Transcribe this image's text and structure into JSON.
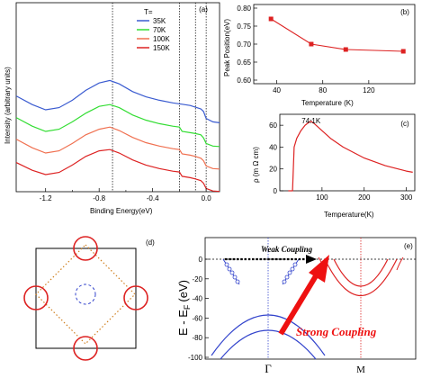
{
  "figure": {
    "panel_a": {
      "label": "(a)",
      "legend_title": "T=",
      "legend": [
        {
          "name": "35K",
          "color": "#3a5bd0"
        },
        {
          "name": "70K",
          "color": "#33dd33"
        },
        {
          "name": "100K",
          "color": "#f07050"
        },
        {
          "name": "150K",
          "color": "#dd2222"
        }
      ],
      "xlabel": "Binding Energy(eV)",
      "ylabel": "Intensity (arbitrary units)",
      "xticks": [
        "-1.2",
        "-0.8",
        "-0.4",
        "0.0"
      ]
    },
    "panel_b": {
      "label": "(b)",
      "xlabel": "Temperature (K)",
      "ylabel": "Peak Position(eV)",
      "xticks": [
        "40",
        "80",
        "120"
      ],
      "yticks": [
        "0.80",
        "0.75",
        "0.70",
        "0.65",
        "0.60"
      ]
    },
    "panel_c": {
      "label": "(c)",
      "annotation": "74.1K",
      "xlabel": "Temperature(K)",
      "ylabel": "ρ (m Ω cm)",
      "xticks": [
        "100",
        "200",
        "300"
      ],
      "yticks": [
        "0",
        "20",
        "40",
        "60"
      ]
    },
    "panel_d": {
      "label": "(d)"
    },
    "panel_e": {
      "label": "(e)",
      "weak_label": "Weak Coupling",
      "strong_label": "Strong Coupling",
      "ylabel": "E - E",
      "ylabel_sub": "F",
      "ylabel_unit": "(eV)",
      "yticks": [
        "0",
        "-20",
        "-40",
        "-60",
        "-80",
        "-100"
      ],
      "xticks": [
        "Γ",
        "M"
      ]
    }
  },
  "chart_data": [
    {
      "type": "line",
      "panel": "(a)",
      "xlabel": "Binding Energy(eV)",
      "ylabel": "Intensity (arbitrary units)",
      "xlim": [
        -1.42,
        0.1
      ],
      "series": [
        {
          "name": "35K",
          "color": "#3a5bd0",
          "offset": 3,
          "x": [
            -1.42,
            -1.3,
            -1.2,
            -1.1,
            -1.0,
            -0.9,
            -0.8,
            -0.72,
            -0.65,
            -0.55,
            -0.45,
            -0.35,
            -0.25,
            -0.18,
            -0.12,
            -0.08,
            -0.04,
            -0.02,
            0.0,
            0.05,
            0.1
          ],
          "y": [
            0.82,
            0.62,
            0.5,
            0.55,
            0.72,
            0.95,
            1.12,
            1.18,
            1.1,
            0.92,
            0.8,
            0.72,
            0.66,
            0.63,
            0.6,
            0.56,
            0.52,
            0.46,
            0.3,
            0.22,
            0.2
          ]
        },
        {
          "name": "70K",
          "color": "#33dd33",
          "offset": 2,
          "x": [
            -1.42,
            -1.3,
            -1.2,
            -1.1,
            -1.0,
            -0.9,
            -0.8,
            -0.72,
            -0.65,
            -0.55,
            -0.45,
            -0.35,
            -0.25,
            -0.2,
            -0.18,
            -0.12,
            -0.08,
            -0.04,
            -0.02,
            0.0,
            0.05,
            0.1
          ],
          "y": [
            0.82,
            0.62,
            0.5,
            0.55,
            0.72,
            0.92,
            1.08,
            1.12,
            1.05,
            0.88,
            0.76,
            0.68,
            0.62,
            0.6,
            0.5,
            0.47,
            0.45,
            0.42,
            0.35,
            0.22,
            0.16,
            0.15
          ]
        },
        {
          "name": "100K",
          "color": "#f07050",
          "offset": 1,
          "x": [
            -1.42,
            -1.3,
            -1.2,
            -1.1,
            -1.0,
            -0.9,
            -0.8,
            -0.72,
            -0.65,
            -0.55,
            -0.45,
            -0.35,
            -0.25,
            -0.2,
            -0.18,
            -0.12,
            -0.08,
            -0.04,
            -0.02,
            0.0,
            0.05,
            0.1
          ],
          "y": [
            0.82,
            0.62,
            0.5,
            0.55,
            0.72,
            0.92,
            1.05,
            1.1,
            1.02,
            0.86,
            0.74,
            0.66,
            0.6,
            0.58,
            0.48,
            0.45,
            0.42,
            0.38,
            0.32,
            0.2,
            0.14,
            0.13
          ]
        },
        {
          "name": "150K",
          "color": "#dd2222",
          "offset": 0,
          "x": [
            -1.42,
            -1.3,
            -1.2,
            -1.1,
            -1.0,
            -0.9,
            -0.8,
            -0.72,
            -0.65,
            -0.55,
            -0.45,
            -0.35,
            -0.25,
            -0.2,
            -0.18,
            -0.12,
            -0.08,
            -0.04,
            -0.02,
            0.0,
            0.05,
            0.1
          ],
          "y": [
            0.78,
            0.6,
            0.5,
            0.55,
            0.72,
            0.92,
            1.05,
            1.08,
            1.0,
            0.84,
            0.72,
            0.64,
            0.58,
            0.56,
            0.46,
            0.43,
            0.4,
            0.36,
            0.3,
            0.18,
            0.12,
            0.11
          ]
        }
      ],
      "vlines": [
        -0.7,
        -0.2,
        -0.08,
        0.0
      ]
    },
    {
      "type": "line",
      "panel": "(b)",
      "xlabel": "Temperature (K)",
      "ylabel": "Peak Position(eV)",
      "xlim": [
        20,
        160
      ],
      "ylim": [
        0.59,
        0.81
      ],
      "series": [
        {
          "color": "#dd2222",
          "x": [
            35,
            70,
            100,
            150
          ],
          "y": [
            0.77,
            0.7,
            0.685,
            0.68
          ]
        }
      ]
    },
    {
      "type": "line",
      "panel": "(c)",
      "xlabel": "Temperature(K)",
      "ylabel": "ρ (m Ω cm)",
      "xlim": [
        0,
        320
      ],
      "ylim": [
        0,
        70
      ],
      "series": [
        {
          "color": "#dd2222",
          "x": [
            20,
            30,
            34,
            40,
            50,
            60,
            70,
            74.1,
            80,
            100,
            120,
            150,
            200,
            250,
            300,
            315
          ],
          "y": [
            0,
            0,
            40,
            48,
            55,
            60,
            63,
            63.5,
            62,
            55,
            48,
            40,
            30,
            23,
            18,
            17
          ]
        }
      ]
    }
  ]
}
